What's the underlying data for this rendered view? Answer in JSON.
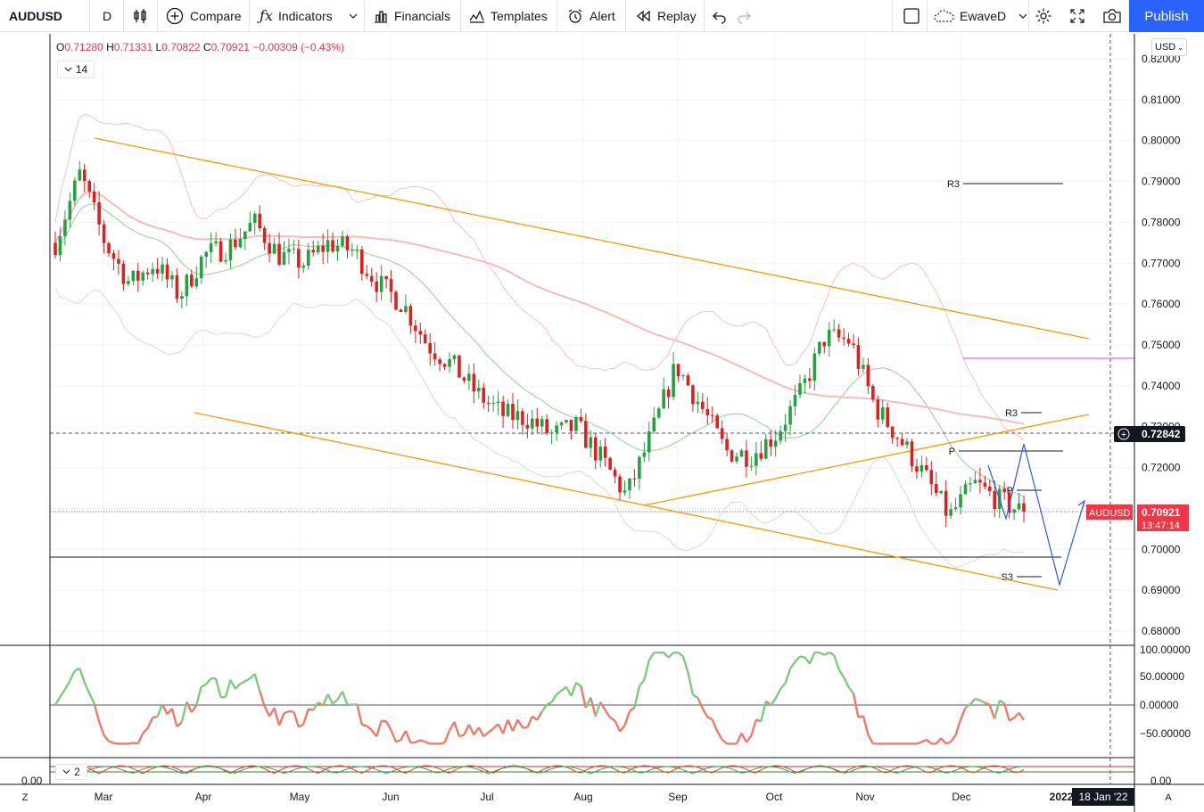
{
  "toolbar": {
    "symbol": "AUDUSD",
    "interval": "D",
    "compare": "Compare",
    "indicators": "Indicators",
    "financials": "Financials",
    "templates": "Templates",
    "alert": "Alert",
    "replay": "Replay",
    "layout_name": "EwaveD",
    "publish": "Publish"
  },
  "legend": {
    "o_label": "O",
    "o": "0.71280",
    "h_label": "H",
    "h": "0.71331",
    "l_label": "L",
    "l": "0.70822",
    "c_label": "C",
    "c": "0.70921",
    "change": "−0.00309 (−0.43%)",
    "length": "14",
    "osc_length": "2"
  },
  "price_axis": {
    "currency": "USD",
    "ticks": [
      "0.82000",
      "0.81000",
      "0.80000",
      "0.79000",
      "0.78000",
      "0.77000",
      "0.76000",
      "0.75000",
      "0.74000",
      "0.73000",
      "0.72000",
      "0.71000",
      "0.70000",
      "0.69000",
      "0.68000"
    ],
    "crosshair_price": "0.72842",
    "last_symbol": "AUDUSD",
    "last_price": "0.70921",
    "countdown": "13:47:14"
  },
  "osc_axis": {
    "ticks": [
      "100.00000",
      "50.00000",
      "0.00000",
      "−50.00000"
    ]
  },
  "osc2_axis": {
    "ticks": [
      "0.00"
    ]
  },
  "time_axis": {
    "months": [
      "Mar",
      "Apr",
      "May",
      "Jun",
      "Jul",
      "Aug",
      "Sep",
      "Oct",
      "Nov",
      "Dec"
    ],
    "year_label": "2022",
    "cursor_date": "18 Jan '22"
  },
  "pivot_labels": [
    "R3",
    "R3",
    "P",
    "P",
    "S3"
  ],
  "colors": {
    "up": "#26a69a",
    "up_candle": "#26a041",
    "down": "#e01e1e",
    "channel": "#ff9800",
    "wave": "#2a5ada",
    "bb": "#f7a8a8",
    "accent": "#2962ff"
  },
  "chart_data": {
    "type": "candlestick",
    "symbol": "AUDUSD",
    "interval": "1D",
    "ylim": [
      0.675,
      0.822
    ],
    "last_close": 0.70921,
    "closes_weekly_approx": [
      0.775,
      0.792,
      0.775,
      0.765,
      0.77,
      0.762,
      0.772,
      0.774,
      0.78,
      0.772,
      0.77,
      0.775,
      0.773,
      0.765,
      0.76,
      0.75,
      0.745,
      0.738,
      0.733,
      0.732,
      0.728,
      0.73,
      0.722,
      0.713,
      0.728,
      0.745,
      0.735,
      0.724,
      0.723,
      0.728,
      0.738,
      0.752,
      0.751,
      0.735,
      0.727,
      0.718,
      0.708,
      0.716,
      0.712,
      0.709
    ],
    "levels": {
      "R3_a": 0.7895,
      "R3_b": 0.7337,
      "P_a": 0.7242,
      "P_b": 0.7148,
      "S3": 0.6935,
      "horizontal_support": 0.6985
    },
    "oscillator": {
      "name": "oscillator",
      "range": [
        -75,
        100
      ]
    }
  }
}
